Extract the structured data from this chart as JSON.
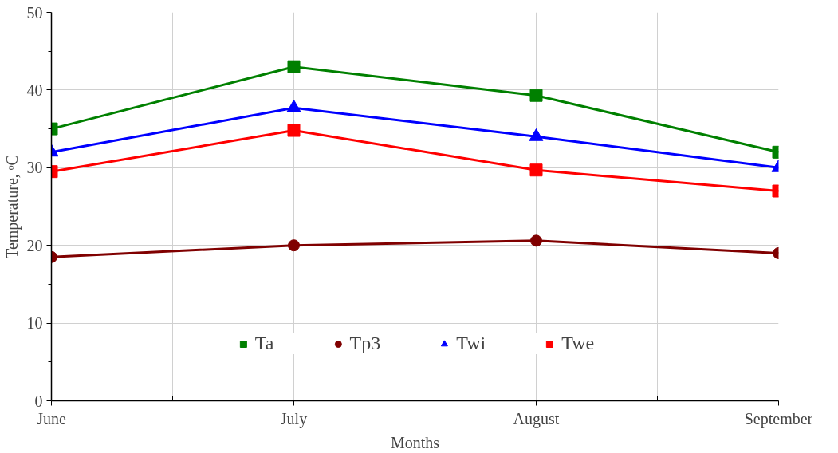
{
  "chart_data": {
    "type": "line",
    "xlabel": "Months",
    "ylabel": "Temperature, ᵒC",
    "categories": [
      "June",
      "July",
      "August",
      "September"
    ],
    "series": [
      {
        "name": "Ta",
        "color": "#008000",
        "marker": "square",
        "values": [
          35,
          43,
          39.3,
          32
        ]
      },
      {
        "name": "Tp3",
        "color": "#800000",
        "marker": "circle",
        "values": [
          18.5,
          20,
          20.6,
          19
        ]
      },
      {
        "name": "Twi",
        "color": "#0000ff",
        "marker": "triangle",
        "values": [
          32,
          37.7,
          34,
          30
        ]
      },
      {
        "name": "Twe",
        "color": "#ff0000",
        "marker": "square",
        "values": [
          29.5,
          34.8,
          29.7,
          27
        ]
      }
    ],
    "ylim": [
      0,
      50
    ],
    "yticks": [
      0,
      10,
      20,
      30,
      40,
      50
    ],
    "grid": true,
    "legend": "bottom",
    "line_style": "solid"
  }
}
